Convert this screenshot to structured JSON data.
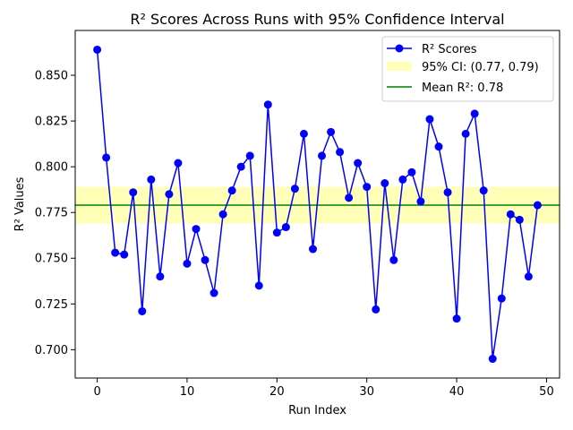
{
  "chart_data": {
    "type": "line",
    "title": "R² Scores Across Runs with 95% Confidence Interval",
    "xlabel": "Run Index",
    "ylabel": "R² Values",
    "xlim": [
      -2.45,
      51.45
    ],
    "ylim": [
      0.6845,
      0.8745
    ],
    "xticks": [
      0,
      10,
      20,
      30,
      40,
      50
    ],
    "yticks": [
      0.7,
      0.725,
      0.75,
      0.775,
      0.8,
      0.825,
      0.85
    ],
    "ytick_labels": [
      "0.700",
      "0.725",
      "0.750",
      "0.775",
      "0.800",
      "0.825",
      "0.850"
    ],
    "grid": false,
    "legend_position": "top-right",
    "series": [
      {
        "name": "R² Scores",
        "color": "#0000ff",
        "x": [
          0,
          1,
          2,
          3,
          4,
          5,
          6,
          7,
          8,
          9,
          10,
          11,
          12,
          13,
          14,
          15,
          16,
          17,
          18,
          19,
          20,
          21,
          22,
          23,
          24,
          25,
          26,
          27,
          28,
          29,
          30,
          31,
          32,
          33,
          34,
          35,
          36,
          37,
          38,
          39,
          40,
          41,
          42,
          43,
          44,
          45,
          46,
          47,
          48,
          49
        ],
        "values": [
          0.864,
          0.805,
          0.753,
          0.752,
          0.786,
          0.721,
          0.793,
          0.74,
          0.785,
          0.802,
          0.747,
          0.766,
          0.749,
          0.731,
          0.774,
          0.787,
          0.8,
          0.806,
          0.735,
          0.834,
          0.764,
          0.767,
          0.788,
          0.818,
          0.755,
          0.806,
          0.819,
          0.808,
          0.783,
          0.802,
          0.789,
          0.722,
          0.791,
          0.749,
          0.793,
          0.797,
          0.781,
          0.826,
          0.811,
          0.786,
          0.717,
          0.818,
          0.829,
          0.787,
          0.695,
          0.728,
          0.774,
          0.771,
          0.74,
          0.779
        ]
      }
    ],
    "ci_band": {
      "name": "95% CI: (0.77, 0.79)",
      "low": 0.769,
      "high": 0.789,
      "color": "#ffff99"
    },
    "mean_line": {
      "name": "Mean R²: 0.78",
      "value": 0.779,
      "color": "#008000"
    }
  }
}
